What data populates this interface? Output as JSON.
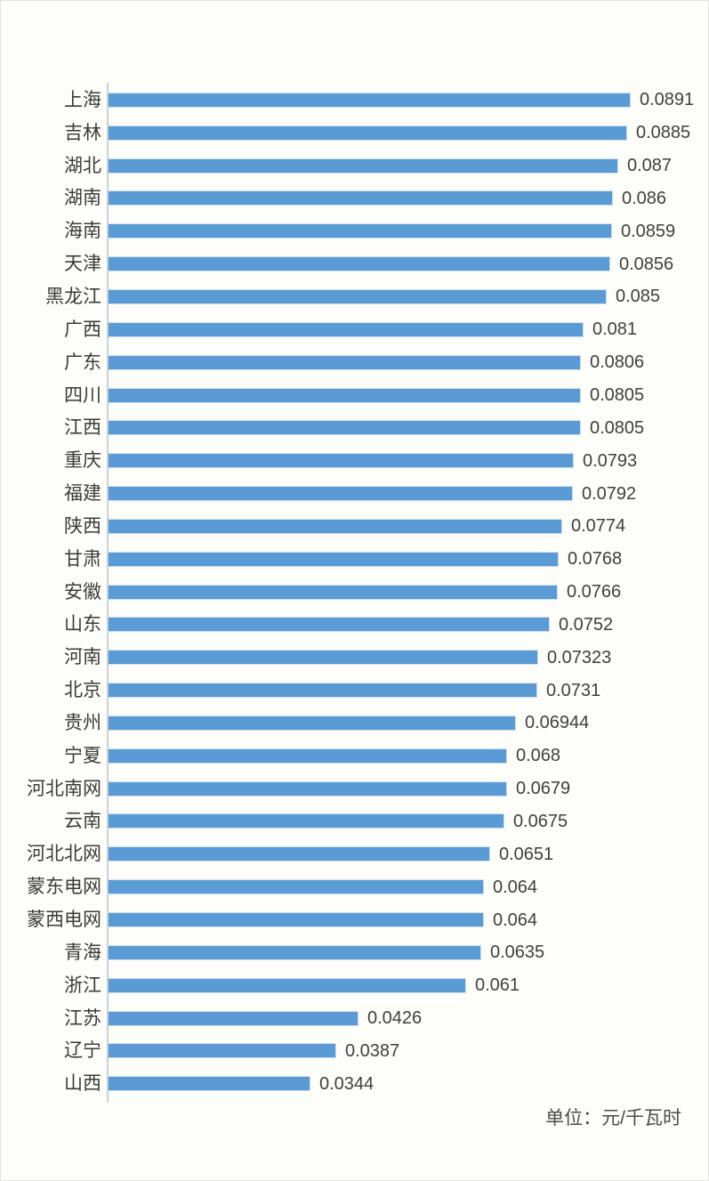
{
  "chart_data": {
    "type": "bar",
    "orientation": "horizontal",
    "title": "",
    "unit_note": "单位：元/千瓦时",
    "xlim": [
      0,
      0.09
    ],
    "grid": false,
    "legend": false,
    "bar_color": "#5B9BD5",
    "axis_line_color": "#ccd1d6",
    "categories": [
      "上海",
      "吉林",
      "湖北",
      "湖南",
      "海南",
      "天津",
      "黑龙江",
      "广西",
      "广东",
      "四川",
      "江西",
      "重庆",
      "福建",
      "陕西",
      "甘肃",
      "安徽",
      "山东",
      "河南",
      "北京",
      "贵州",
      "宁夏",
      "河北南网",
      "云南",
      "河北北网",
      "蒙东电网",
      "蒙西电网",
      "青海",
      "浙江",
      "江苏",
      "辽宁",
      "山西"
    ],
    "values": [
      0.0891,
      0.0885,
      0.087,
      0.086,
      0.0859,
      0.0856,
      0.085,
      0.081,
      0.0806,
      0.0805,
      0.0805,
      0.0793,
      0.0792,
      0.0774,
      0.0768,
      0.0766,
      0.0752,
      0.07323,
      0.0731,
      0.06944,
      0.068,
      0.0679,
      0.0675,
      0.0651,
      0.064,
      0.064,
      0.0635,
      0.061,
      0.0426,
      0.0387,
      0.0344
    ],
    "value_labels": [
      "0.0891",
      "0.0885",
      "0.087",
      "0.086",
      "0.0859",
      "0.0856",
      "0.085",
      "0.081",
      "0.0806",
      "0.0805",
      "0.0805",
      "0.0793",
      "0.0792",
      "0.0774",
      "0.0768",
      "0.0766",
      "0.0752",
      "0.07323",
      "0.0731",
      "0.06944",
      "0.068",
      "0.0679",
      "0.0675",
      "0.0651",
      "0.064",
      "0.064",
      "0.0635",
      "0.061",
      "0.0426",
      "0.0387",
      "0.0344"
    ]
  }
}
